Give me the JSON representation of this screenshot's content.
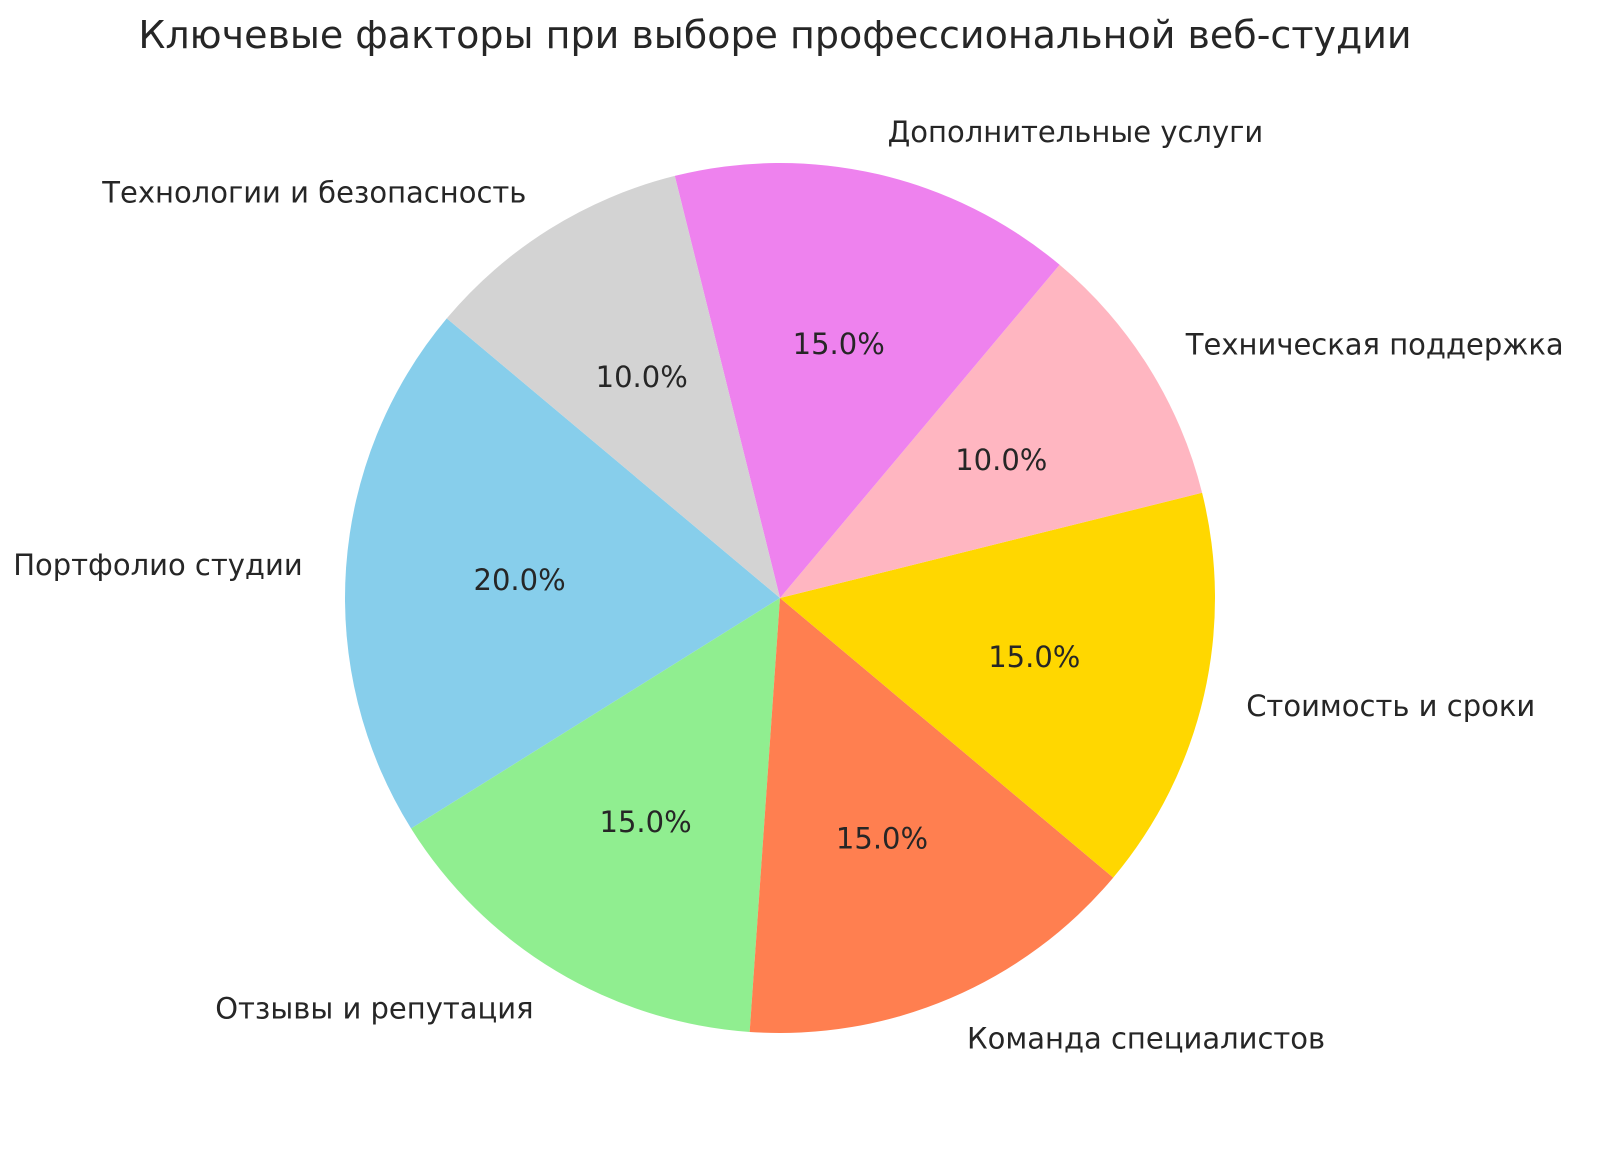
{
  "title": "Ключевые факторы при выборе профессиональной веб-студии",
  "chart_data": {
    "type": "pie",
    "title": "Ключевые факторы при выборе профессиональной веб-студии",
    "slices": [
      {
        "label": "Портфолио студии",
        "value": 20,
        "pct_label": "20.0%",
        "color": "#87CEEB"
      },
      {
        "label": "Отзывы и репутация",
        "value": 15,
        "pct_label": "15.0%",
        "color": "#90EE90"
      },
      {
        "label": "Команда специалистов",
        "value": 15,
        "pct_label": "15.0%",
        "color": "#FF7F50"
      },
      {
        "label": "Стоимость и сроки",
        "value": 15,
        "pct_label": "15.0%",
        "color": "#FFD700"
      },
      {
        "label": "Техническая поддержка",
        "value": 10,
        "pct_label": "10.0%",
        "color": "#FFB6C1"
      },
      {
        "label": "Дополнительные услуги",
        "value": 15,
        "pct_label": "15.0%",
        "color": "#EE82EE"
      },
      {
        "label": "Технологии и безопасность",
        "value": 10,
        "pct_label": "10.0%",
        "color": "#D3D3D3"
      }
    ],
    "start_angle": 140,
    "direction": "counterclockwise",
    "label_distance": 1.1,
    "pct_distance": 0.6,
    "legend": "none",
    "grid": "off",
    "text_color": "#262626",
    "background": "#FFFFFF"
  }
}
